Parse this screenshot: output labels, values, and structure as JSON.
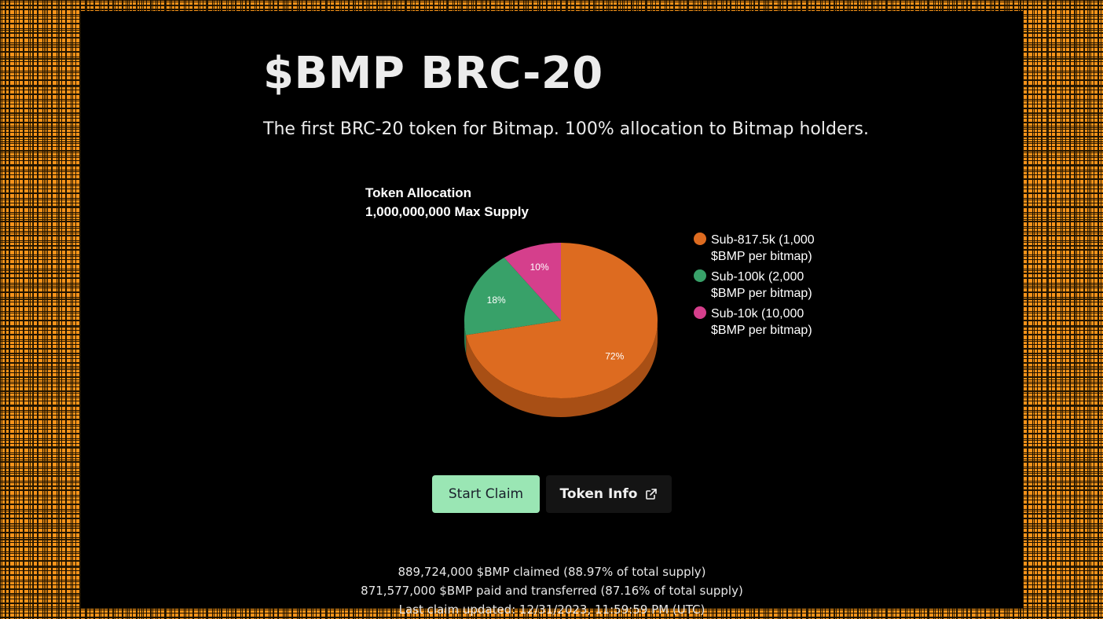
{
  "header": {
    "title": "$BMP BRC-20",
    "subtitle": "The first BRC-20 token for Bitmap. 100% allocation to Bitmap holders."
  },
  "chart_data": {
    "type": "pie",
    "title": "Token Allocation",
    "subtitle": "1,000,000,000 Max Supply",
    "legend_position": "right",
    "categories": [
      "Sub-817.5k (1,000 $BMP per bitmap)",
      "Sub-100k (2,000 $BMP per bitmap)",
      "Sub-10k (10,000 $BMP per bitmap)"
    ],
    "legend_lines": [
      [
        "Sub-817.5k (1,000",
        "$BMP per bitmap)"
      ],
      [
        "Sub-100k (2,000",
        "$BMP per bitmap)"
      ],
      [
        "Sub-10k (10,000",
        "$BMP per bitmap)"
      ]
    ],
    "values": [
      72,
      18,
      10
    ],
    "labels": [
      "72%",
      "18%",
      "10%"
    ],
    "colors": [
      "#dd6b20",
      "#38a169",
      "#d53f8c"
    ],
    "side_colors": [
      "#a84f15",
      "#2a7a4f",
      "#a02e69"
    ],
    "style": "3d"
  },
  "actions": {
    "claim_label": "Start Claim",
    "info_label": "Token Info",
    "info_icon": "external-link-icon"
  },
  "stats": {
    "claimed": "889,724,000 $BMP claimed (88.97% of total supply)",
    "paid": "871,577,000 $BMP paid and transferred (87.16% of total supply)",
    "last_update": "Last claim updated: 12/31/2023, 11:59:59 PM (UTC)"
  },
  "colors": {
    "background_mosaic": "#f7931a",
    "panel": "#000000",
    "claim_button": "#9ae6b4",
    "info_button": "#141414"
  }
}
